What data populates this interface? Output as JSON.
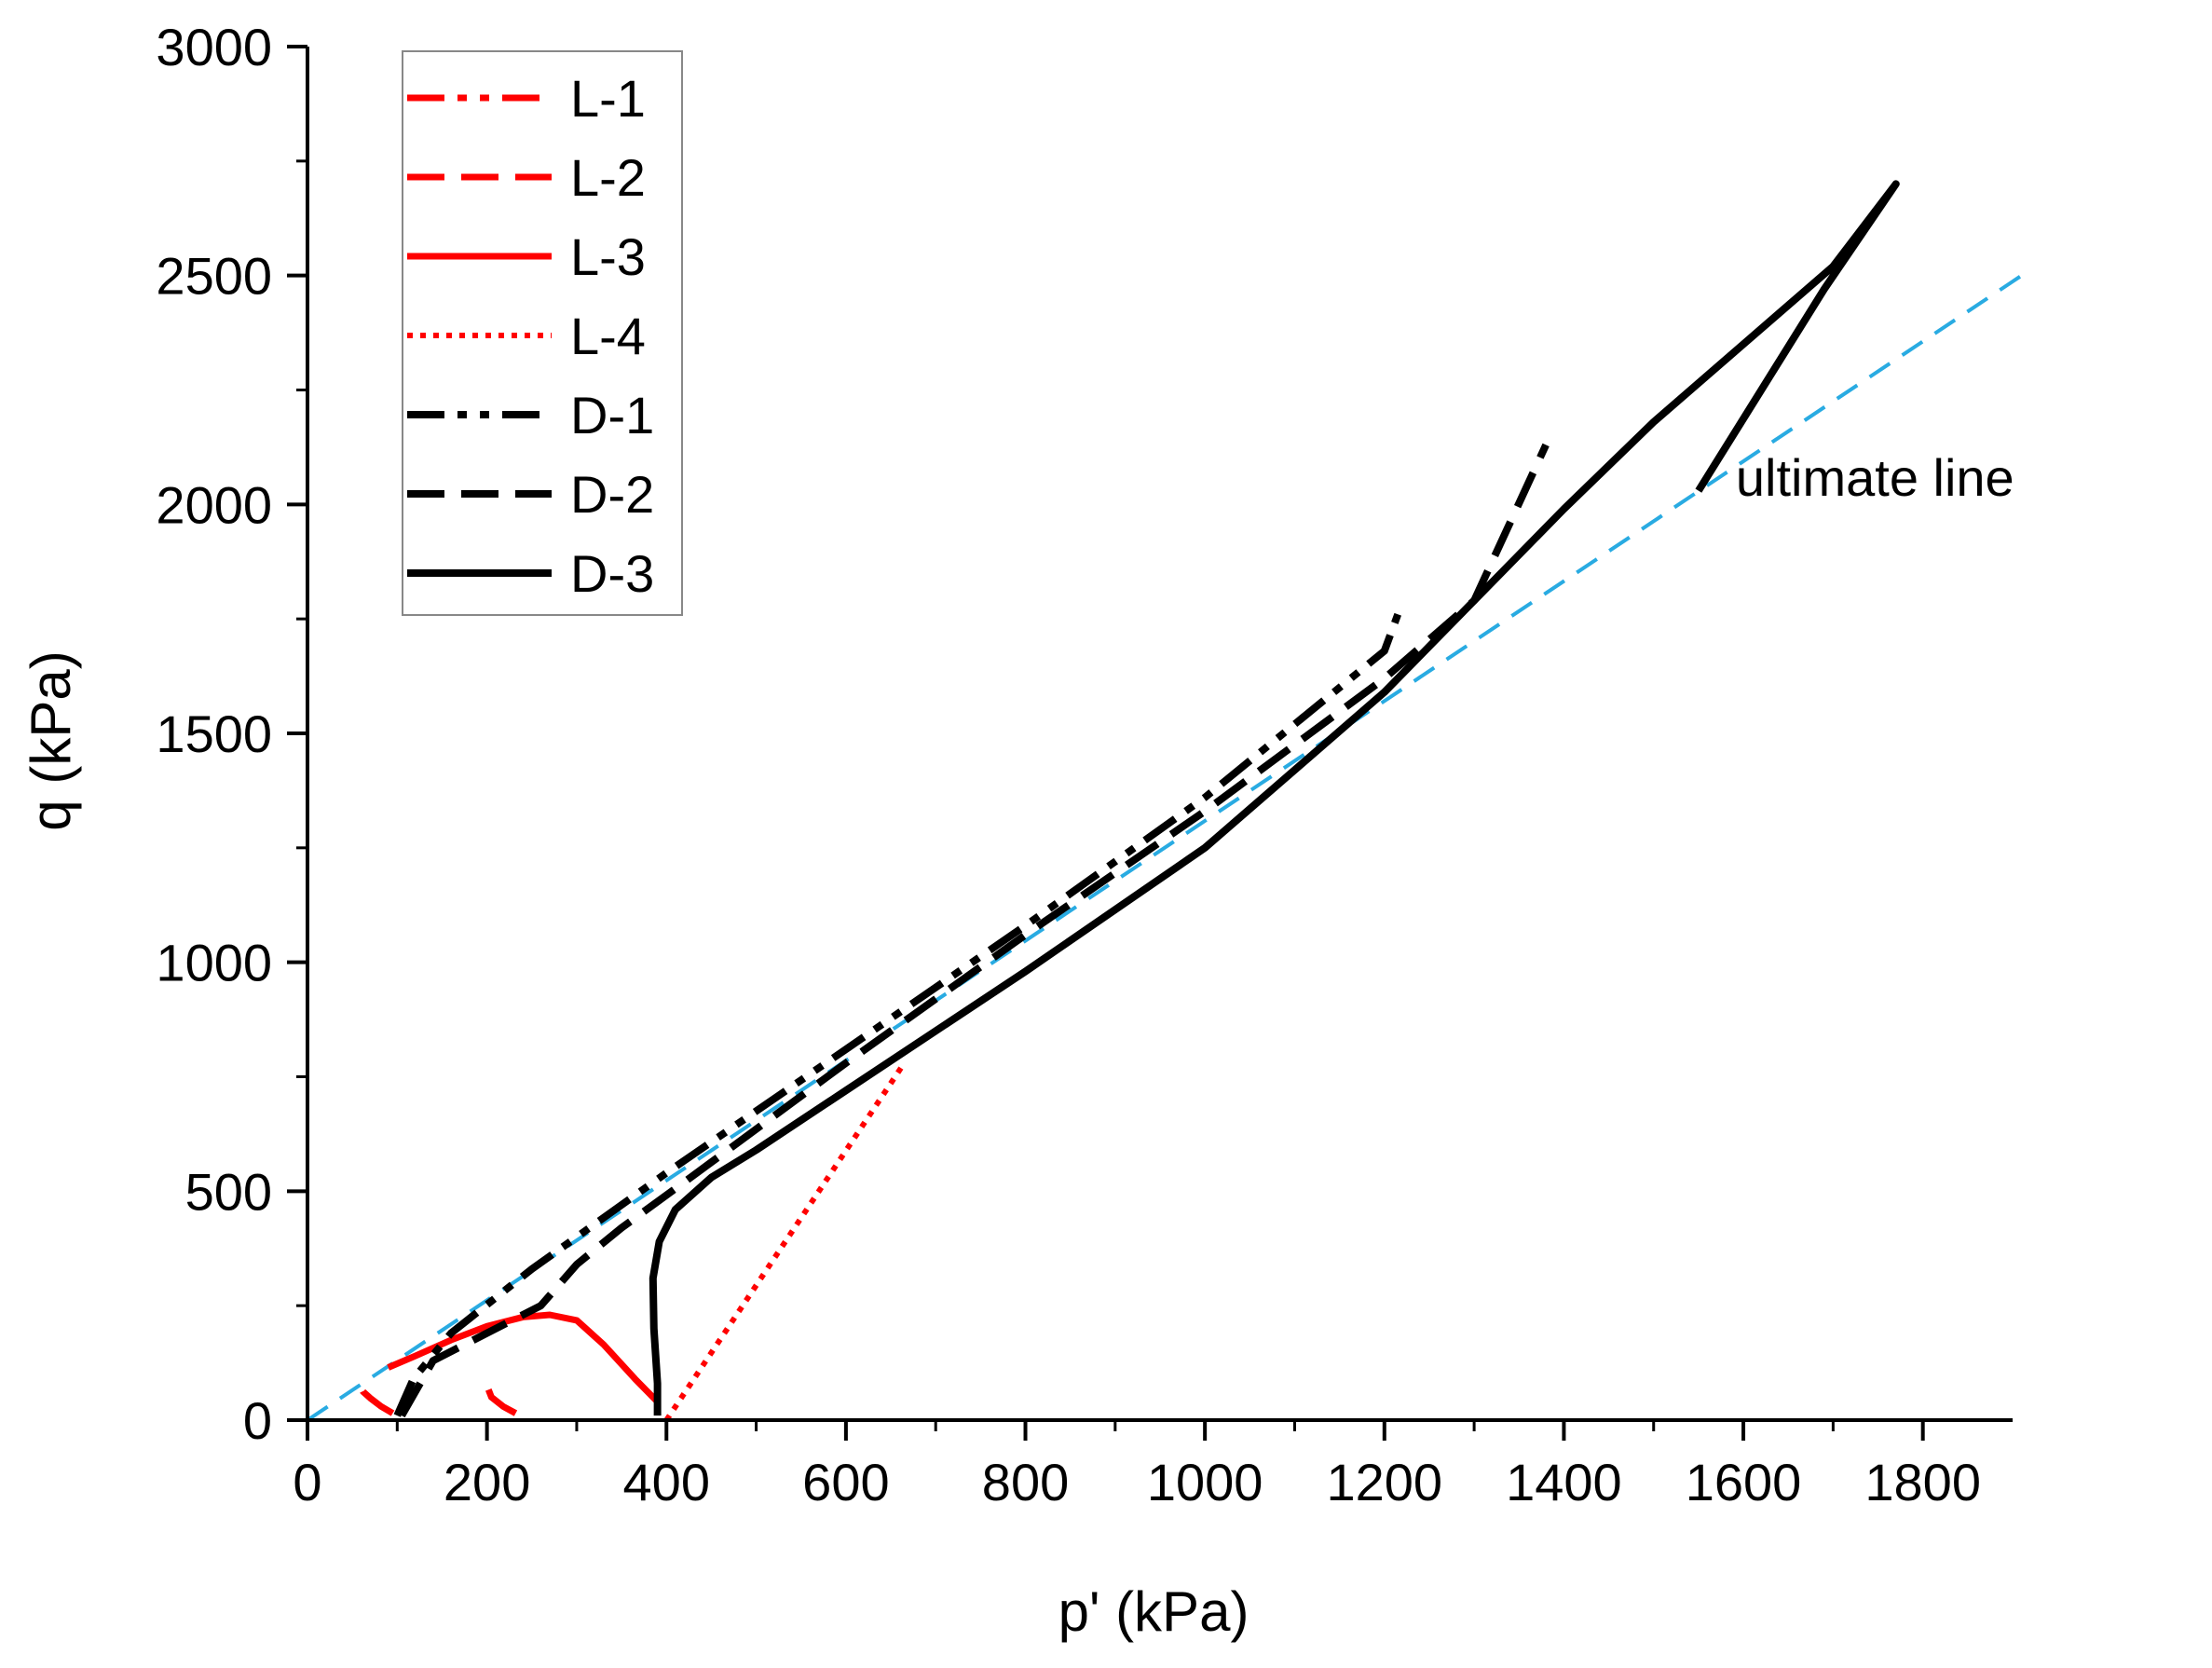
{
  "chart_data": {
    "type": "line",
    "title": "",
    "xlabel": "p' (kPa)",
    "ylabel": "q (kPa)",
    "xlim": [
      0,
      1900
    ],
    "ylim": [
      0,
      3000
    ],
    "x_major_ticks": [
      0,
      200,
      400,
      600,
      800,
      1000,
      1200,
      1400,
      1600,
      1800
    ],
    "x_tick_labels": [
      "0",
      "200",
      "400",
      "600",
      "800",
      "1000",
      "1200",
      "1400",
      "1600",
      "1800"
    ],
    "y_major_ticks": [
      0,
      500,
      1000,
      1500,
      2000,
      2500,
      3000
    ],
    "y_tick_labels": [
      "0",
      "500",
      "1000",
      "1500",
      "2000",
      "2500",
      "3000"
    ],
    "legend_position": "top-left",
    "annotation": {
      "text": "ultimate line",
      "x": 1550,
      "y": 2060
    },
    "reference_line": {
      "name": "ultimate line",
      "color": "#29abe2",
      "style": "dashed",
      "points": [
        [
          0,
          0
        ],
        [
          1910,
          2500
        ]
      ]
    },
    "series": [
      {
        "name": "L-1",
        "color": "#ff0000",
        "style": "dashdotdot",
        "width": 7,
        "points": [
          [
            95,
            15
          ],
          [
            82,
            30
          ],
          [
            70,
            48
          ],
          [
            62,
            62
          ],
          [
            60,
            70
          ]
        ]
      },
      {
        "name": "L-2",
        "color": "#ff0000",
        "style": "dashed",
        "width": 7,
        "points": [
          [
            232,
            15
          ],
          [
            218,
            30
          ],
          [
            205,
            50
          ],
          [
            200,
            75
          ],
          [
            200,
            95
          ]
        ]
      },
      {
        "name": "L-3",
        "color": "#ff0000",
        "style": "solid",
        "width": 7,
        "points": [
          [
            390,
            40
          ],
          [
            365,
            90
          ],
          [
            330,
            165
          ],
          [
            300,
            218
          ],
          [
            270,
            230
          ],
          [
            240,
            225
          ],
          [
            200,
            205
          ],
          [
            160,
            175
          ],
          [
            120,
            140
          ],
          [
            90,
            115
          ]
        ]
      },
      {
        "name": "L-4",
        "color": "#ff0000",
        "style": "dotted",
        "width": 6,
        "points": [
          [
            400,
            0
          ],
          [
            665,
            780
          ]
        ]
      },
      {
        "name": "D-1",
        "color": "#000000",
        "style": "dashdotdot",
        "width": 8,
        "points": [
          [
            100,
            10
          ],
          [
            118,
            90
          ],
          [
            160,
            190
          ],
          [
            250,
            330
          ],
          [
            400,
            540
          ],
          [
            600,
            810
          ],
          [
            800,
            1080
          ],
          [
            1000,
            1360
          ],
          [
            1100,
            1520
          ],
          [
            1200,
            1680
          ],
          [
            1215,
            1760
          ]
        ]
      },
      {
        "name": "D-2",
        "color": "#000000",
        "style": "dashed",
        "width": 8,
        "points": [
          [
            105,
            10
          ],
          [
            140,
            130
          ],
          [
            260,
            250
          ],
          [
            300,
            340
          ],
          [
            350,
            420
          ],
          [
            420,
            520
          ],
          [
            600,
            780
          ],
          [
            800,
            1060
          ],
          [
            1000,
            1330
          ],
          [
            1200,
            1620
          ],
          [
            1300,
            1790
          ],
          [
            1380,
            2130
          ]
        ]
      },
      {
        "name": "D-3",
        "color": "#000000",
        "style": "solid",
        "width": 8,
        "points": [
          [
            390,
            10
          ],
          [
            390,
            80
          ],
          [
            386,
            200
          ],
          [
            385,
            310
          ],
          [
            392,
            390
          ],
          [
            410,
            460
          ],
          [
            450,
            530
          ],
          [
            500,
            590
          ],
          [
            600,
            720
          ],
          [
            800,
            980
          ],
          [
            1000,
            1250
          ],
          [
            1200,
            1590
          ],
          [
            1400,
            1990
          ],
          [
            1500,
            2180
          ],
          [
            1600,
            2350
          ],
          [
            1700,
            2520
          ],
          [
            1770,
            2700
          ],
          [
            1690,
            2470
          ],
          [
            1620,
            2250
          ],
          [
            1550,
            2030
          ]
        ]
      }
    ]
  }
}
